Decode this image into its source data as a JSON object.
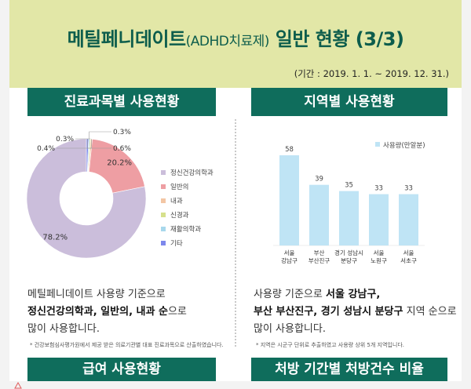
{
  "header": {
    "title_main": "메틸페니데이트",
    "title_paren": "(ADHD치료제)",
    "title_rest": " 일반 현황 (3/3)",
    "period": "(기간 : 2019. 1. 1. ~ 2019. 12. 31.)"
  },
  "left": {
    "section_title": "진료과목별 사용현황",
    "text_line1": "메틸페니데이트 사용량 기준으로",
    "text_bold": "정신건강의학과, 일반의, 내과 순",
    "text_after_bold": "으로",
    "text_line3": "많이 사용합니다.",
    "footnote": "* 건강보험심사평가원에서 제공 받은 의료기관별 대표 진료과목으로 산출하였습니다."
  },
  "right": {
    "section_title": "지역별 사용현황",
    "text_prefix": "사용량 기준으로 ",
    "text_bold1": "서울 강남구,",
    "text_bold2": "부산 부산진구, 경기 성남시 분당구",
    "text_after": " 지역 순으로",
    "text_line3": "많이 사용합니다.",
    "footnote": "* 지역은 시군구 단위로 추출하였고 사용량 상위 5개 지역입니다."
  },
  "bottom": {
    "left_section": "급여 사용현황",
    "right_section": "처방 기간별 처방건수 비율"
  },
  "colors": {
    "header_bg": "#e2e7a7",
    "section_bg": "#0f6d5c",
    "bar": "#bfe4f5",
    "pie": [
      "#cbbedb",
      "#ee9ea3",
      "#f3c6a4",
      "#d6e08c",
      "#a8d8ec",
      "#7d88ec"
    ]
  },
  "chart_data": [
    {
      "type": "pie",
      "variant": "donut",
      "categories": [
        "정신건강의학과",
        "일반의",
        "내과",
        "신경과",
        "재활의학과",
        "기타"
      ],
      "values": [
        78.2,
        20.2,
        0.4,
        0.3,
        0.3,
        0.6
      ],
      "labels": [
        "78.2%",
        "20.2%",
        "0.4%",
        "0.3%",
        "0.3%",
        "0.6%"
      ],
      "legend": "right"
    },
    {
      "type": "bar",
      "categories": [
        [
          "서울",
          "강남구"
        ],
        [
          "부산",
          "부산진구"
        ],
        [
          "경기 성남시",
          "분당구"
        ],
        [
          "서울",
          "노원구"
        ],
        [
          "서울",
          "서초구"
        ]
      ],
      "series": [
        {
          "name": "사용량(만알분)",
          "values": [
            58,
            39,
            35,
            33,
            33
          ]
        }
      ],
      "legend": "top-right",
      "grid": false
    }
  ]
}
